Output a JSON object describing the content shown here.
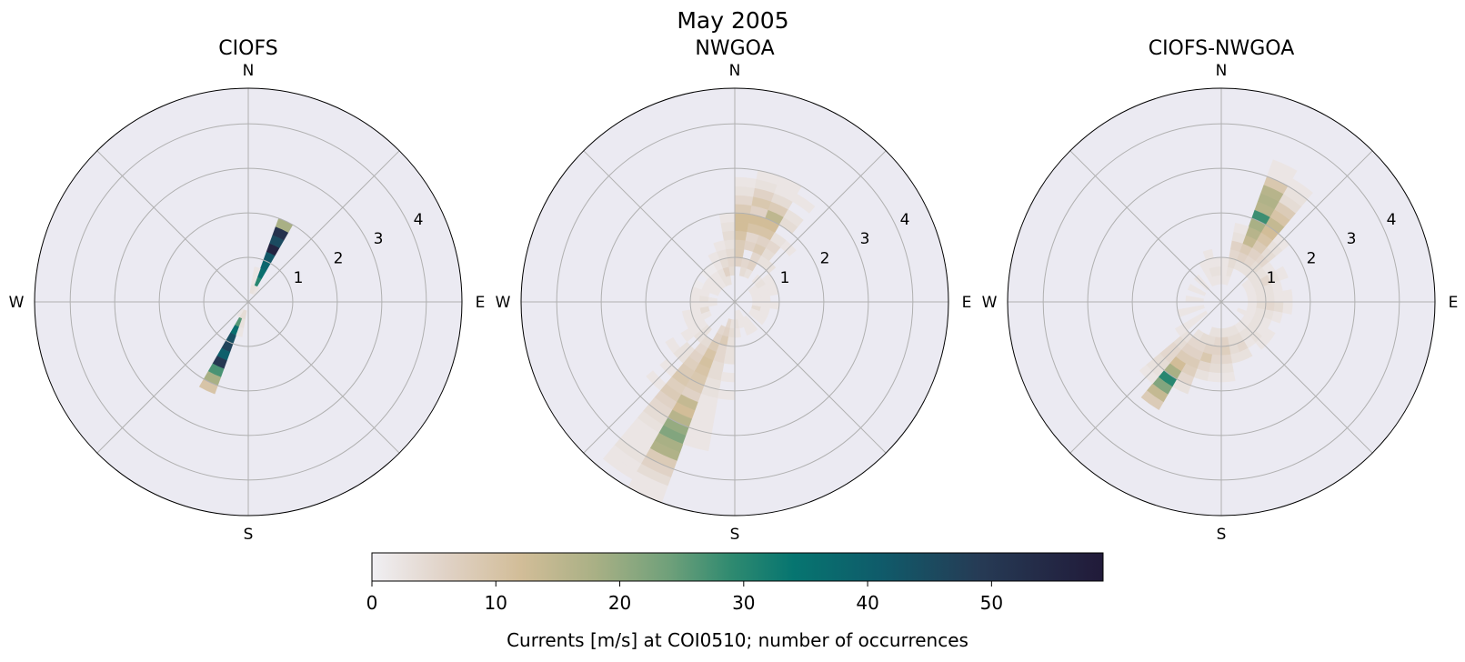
{
  "chart_data": {
    "type": "polar-histogram",
    "title": "May 2005",
    "dir_bin_deg": 10,
    "speed_bin": 0.2,
    "rlim": [
      0,
      4.8
    ],
    "radial_ticks": [
      "1",
      "2",
      "3",
      "4"
    ],
    "compass_labels": {
      "N": "N",
      "E": "E",
      "S": "S",
      "W": "W"
    },
    "grid": true,
    "background_color": "#ebeaf2",
    "colorbar": {
      "label": "Currents [m/s] at COI0510; number of occurrences",
      "range": [
        0,
        59
      ],
      "ticks": [
        "0",
        "10",
        "20",
        "30",
        "40",
        "50"
      ],
      "colormap_stops": [
        {
          "v": 0,
          "color": "#f0eff3"
        },
        {
          "v": 6,
          "color": "#e0d2c6"
        },
        {
          "v": 12,
          "color": "#d2bd98"
        },
        {
          "v": 18,
          "color": "#a9b085"
        },
        {
          "v": 24,
          "color": "#6fa07a"
        },
        {
          "v": 29,
          "color": "#2f8a70"
        },
        {
          "v": 34,
          "color": "#067570"
        },
        {
          "v": 41,
          "color": "#0f5b6a"
        },
        {
          "v": 49,
          "color": "#263b55"
        },
        {
          "v": 59,
          "color": "#211a39"
        }
      ]
    },
    "panels": [
      {
        "title": "CIOFS",
        "cells": [
          {
            "dir": 25,
            "speed_from": 0.2,
            "counts": [
              3,
              30,
              36,
              38,
              42,
              56,
              45,
              52,
              18
            ]
          },
          {
            "dir": 15,
            "speed_from": 0.2,
            "counts": [
              3,
              2,
              2
            ]
          },
          {
            "dir": 35,
            "speed_from": 0.2,
            "counts": [
              2
            ]
          },
          {
            "dir": 205,
            "speed_from": 0.2,
            "counts": [
              4,
              26,
              36,
              44,
              47,
              40,
              50,
              27,
              18,
              10
            ]
          },
          {
            "dir": 195,
            "speed_from": 0.2,
            "counts": [
              4,
              3,
              2
            ]
          },
          {
            "dir": 215,
            "speed_from": 0.2,
            "counts": [
              2
            ]
          }
        ]
      },
      {
        "title": "NWGOA",
        "cells": [
          {
            "dir": 5,
            "speed_from": 0.8,
            "counts": [
              6,
              8,
              8,
              10,
              12,
              12,
              8,
              5,
              3,
              2
            ]
          },
          {
            "dir": 15,
            "speed_from": 0.6,
            "counts": [
              4,
              5,
              0,
              6,
              5,
              10,
              12,
              6,
              9,
              6,
              3,
              2
            ]
          },
          {
            "dir": 25,
            "speed_from": 0.6,
            "counts": [
              3,
              6,
              5,
              8,
              6,
              10,
              12,
              15,
              8,
              4,
              2,
              2
            ]
          },
          {
            "dir": 35,
            "speed_from": 1.0,
            "counts": [
              3,
              4,
              5,
              3,
              0,
              4,
              3,
              0,
              2
            ]
          },
          {
            "dir": 45,
            "speed_from": 0.6,
            "counts": [
              2,
              0,
              3,
              0,
              0,
              2
            ]
          },
          {
            "dir": 355,
            "speed_from": 0.6,
            "counts": [
              4,
              5,
              4,
              3,
              4,
              3,
              2
            ]
          },
          {
            "dir": 345,
            "speed_from": 0.4,
            "counts": [
              3,
              6,
              4,
              3,
              2
            ]
          },
          {
            "dir": 335,
            "speed_from": 0.4,
            "counts": [
              3,
              3,
              2,
              2
            ]
          },
          {
            "dir": 325,
            "speed_from": 0.4,
            "counts": [
              2,
              2,
              1
            ]
          },
          {
            "dir": 315,
            "speed_from": 0.4,
            "counts": [
              2,
              2,
              1
            ]
          },
          {
            "dir": 305,
            "speed_from": 0.4,
            "counts": [
              2,
              2
            ]
          },
          {
            "dir": 295,
            "speed_from": 0.4,
            "counts": [
              2,
              2,
              1
            ]
          },
          {
            "dir": 285,
            "speed_from": 0.6,
            "counts": [
              2,
              2
            ]
          },
          {
            "dir": 275,
            "speed_from": 0.4,
            "counts": [
              2,
              3,
              2
            ]
          },
          {
            "dir": 265,
            "speed_from": 0.4,
            "counts": [
              2,
              2,
              2
            ]
          },
          {
            "dir": 255,
            "speed_from": 0.6,
            "counts": [
              4,
              2,
              2
            ]
          },
          {
            "dir": 245,
            "speed_from": 0.6,
            "counts": [
              2,
              2,
              2
            ]
          },
          {
            "dir": 235,
            "speed_from": 0.8,
            "counts": [
              2,
              2,
              2,
              0,
              2
            ]
          },
          {
            "dir": 225,
            "speed_from": 0.8,
            "counts": [
              3,
              3,
              0,
              3,
              3,
              0,
              2,
              0,
              2
            ]
          },
          {
            "dir": 215,
            "speed_from": 1.0,
            "counts": [
              4,
              5,
              6,
              7,
              8,
              9,
              7,
              8,
              6,
              5,
              4,
              3,
              2,
              2,
              2,
              3,
              2,
              2
            ]
          },
          {
            "dir": 205,
            "speed_from": 0.6,
            "counts": [
              5,
              6,
              8,
              10,
              11,
              10,
              9,
              8,
              6,
              14,
              12,
              16,
              20,
              22,
              18,
              17,
              8,
              6,
              4,
              2,
              2
            ]
          },
          {
            "dir": 195,
            "speed_from": 0.4,
            "counts": [
              5,
              6,
              8,
              5,
              5,
              4,
              4,
              3,
              3,
              2,
              2,
              2,
              2,
              2,
              2
            ]
          },
          {
            "dir": 185,
            "speed_from": 0.4,
            "counts": [
              3,
              4,
              3,
              3,
              3,
              0,
              2,
              0,
              2
            ]
          },
          {
            "dir": 175,
            "speed_from": 0.2,
            "counts": [
              2,
              3,
              2
            ]
          },
          {
            "dir": 165,
            "speed_from": 0.2,
            "counts": [
              2,
              2
            ]
          },
          {
            "dir": 155,
            "speed_from": 0.2,
            "counts": [
              2,
              2,
              2
            ]
          },
          {
            "dir": 145,
            "speed_from": 0.4,
            "counts": [
              2,
              2
            ]
          },
          {
            "dir": 125,
            "speed_from": 0.4,
            "counts": [
              2,
              2
            ]
          },
          {
            "dir": 115,
            "speed_from": 0.4,
            "counts": [
              2,
              2
            ]
          },
          {
            "dir": 105,
            "speed_from": 0.4,
            "counts": [
              4,
              2
            ]
          },
          {
            "dir": 95,
            "speed_from": 0.4,
            "counts": [
              2,
              2,
              2
            ]
          },
          {
            "dir": 85,
            "speed_from": 0.4,
            "counts": [
              2,
              2
            ]
          },
          {
            "dir": 75,
            "speed_from": 0.4,
            "counts": [
              2,
              2,
              2
            ]
          },
          {
            "dir": 65,
            "speed_from": 0.4,
            "counts": [
              2,
              2,
              2
            ]
          },
          {
            "dir": 55,
            "speed_from": 0.4,
            "counts": [
              2,
              3,
              2
            ]
          }
        ]
      },
      {
        "title": "CIOFS-NWGOA",
        "cells": [
          {
            "dir": 25,
            "speed_from": 0.8,
            "counts": [
              3,
              6,
              8,
              14,
              16,
              18,
              28,
              16,
              17,
              16,
              9,
              2,
              2
            ]
          },
          {
            "dir": 35,
            "speed_from": 0.8,
            "counts": [
              3,
              5,
              6,
              8,
              10,
              12,
              14,
              10,
              8,
              4,
              3,
              2
            ]
          },
          {
            "dir": 15,
            "speed_from": 0.4,
            "counts": [
              2,
              3,
              4,
              5,
              6,
              3,
              2
            ]
          },
          {
            "dir": 45,
            "speed_from": 0.8,
            "counts": [
              3,
              4,
              5,
              4,
              3,
              2
            ]
          },
          {
            "dir": 55,
            "speed_from": 0.6,
            "counts": [
              2,
              3,
              3,
              2
            ]
          },
          {
            "dir": 65,
            "speed_from": 0.6,
            "counts": [
              2,
              3,
              5,
              3,
              2
            ]
          },
          {
            "dir": 75,
            "speed_from": 0.6,
            "counts": [
              2,
              3,
              3,
              2
            ]
          },
          {
            "dir": 85,
            "speed_from": 0.6,
            "counts": [
              2,
              3,
              3,
              2,
              2
            ]
          },
          {
            "dir": 95,
            "speed_from": 0.6,
            "counts": [
              2,
              4,
              5,
              4,
              2
            ]
          },
          {
            "dir": 105,
            "speed_from": 0.6,
            "counts": [
              2,
              3,
              3,
              2
            ]
          },
          {
            "dir": 115,
            "speed_from": 0.4,
            "counts": [
              2,
              2,
              3,
              2
            ]
          },
          {
            "dir": 125,
            "speed_from": 0.6,
            "counts": [
              2,
              3,
              2,
              2
            ]
          },
          {
            "dir": 135,
            "speed_from": 0.6,
            "counts": [
              2,
              3,
              3,
              2
            ]
          },
          {
            "dir": 145,
            "speed_from": 0.6,
            "counts": [
              2,
              3,
              2
            ]
          },
          {
            "dir": 155,
            "speed_from": 0.6,
            "counts": [
              3,
              4,
              5,
              3
            ]
          },
          {
            "dir": 165,
            "speed_from": 0.6,
            "counts": [
              3,
              4,
              4,
              3
            ]
          },
          {
            "dir": 175,
            "speed_from": 0.6,
            "counts": [
              3,
              6,
              7,
              5,
              3,
              2
            ]
          },
          {
            "dir": 185,
            "speed_from": 0.6,
            "counts": [
              3,
              5,
              6,
              5,
              4,
              2
            ]
          },
          {
            "dir": 195,
            "speed_from": 0.6,
            "counts": [
              3,
              4,
              6,
              9,
              5,
              3
            ]
          },
          {
            "dir": 205,
            "speed_from": 0.8,
            "counts": [
              4,
              5,
              6,
              8,
              7,
              5,
              3
            ]
          },
          {
            "dir": 215,
            "speed_from": 0.8,
            "counts": [
              3,
              5,
              6,
              8,
              12,
              18,
              30,
              22,
              14,
              8
            ]
          },
          {
            "dir": 225,
            "speed_from": 1.0,
            "counts": [
              3,
              4,
              5,
              5,
              4,
              3,
              2
            ]
          },
          {
            "dir": 235,
            "speed_from": 0.4,
            "counts": [
              2,
              2,
              2,
              2
            ]
          },
          {
            "dir": 255,
            "speed_from": 0.4,
            "counts": [
              2,
              2,
              2
            ]
          },
          {
            "dir": 275,
            "speed_from": 0.4,
            "counts": [
              2,
              2
            ]
          },
          {
            "dir": 295,
            "speed_from": 0.4,
            "counts": [
              2,
              2
            ]
          },
          {
            "dir": 315,
            "speed_from": 0.4,
            "counts": [
              2,
              2
            ]
          },
          {
            "dir": 335,
            "speed_from": 0.4,
            "counts": [
              2,
              2,
              2
            ]
          },
          {
            "dir": 345,
            "speed_from": 0.4,
            "counts": [
              2,
              3,
              2,
              2
            ]
          },
          {
            "dir": 355,
            "speed_from": 0.4,
            "counts": [
              2,
              3,
              2
            ]
          },
          {
            "dir": 5,
            "speed_from": 0.4,
            "counts": [
              2,
              2,
              2
            ]
          }
        ]
      }
    ]
  }
}
